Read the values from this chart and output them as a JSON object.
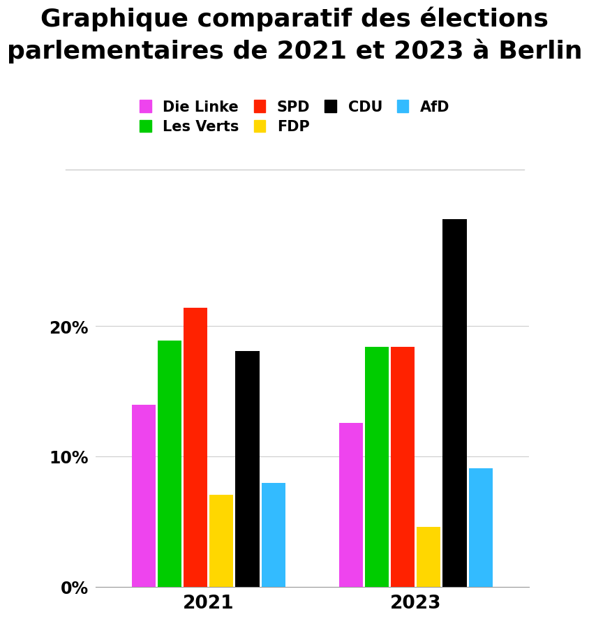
{
  "title_line1": "Graphique comparatif des élections",
  "title_line2": "parlementaires de 2021 et 2023 à Berlin",
  "years": [
    "2021",
    "2023"
  ],
  "parties": [
    "Die Linke",
    "Les Verts",
    "SPD",
    "FDP",
    "CDU",
    "AfD"
  ],
  "colors": [
    "#EE44EE",
    "#00CC00",
    "#FF2200",
    "#FFD700",
    "#000000",
    "#33BBFF"
  ],
  "values_2021": [
    14.0,
    18.9,
    21.4,
    7.1,
    18.1,
    8.0
  ],
  "values_2023": [
    12.6,
    18.4,
    18.4,
    4.6,
    28.2,
    9.1
  ],
  "yticks": [
    0,
    10,
    20
  ],
  "ytick_labels": [
    "0%",
    "10%",
    "20%"
  ],
  "ylim": [
    0,
    31
  ],
  "background_color": "#FFFFFF",
  "bar_width": 0.055,
  "title_fontsize": 26,
  "legend_fontsize": 15,
  "tick_fontsize": 17,
  "xtick_fontsize": 19
}
